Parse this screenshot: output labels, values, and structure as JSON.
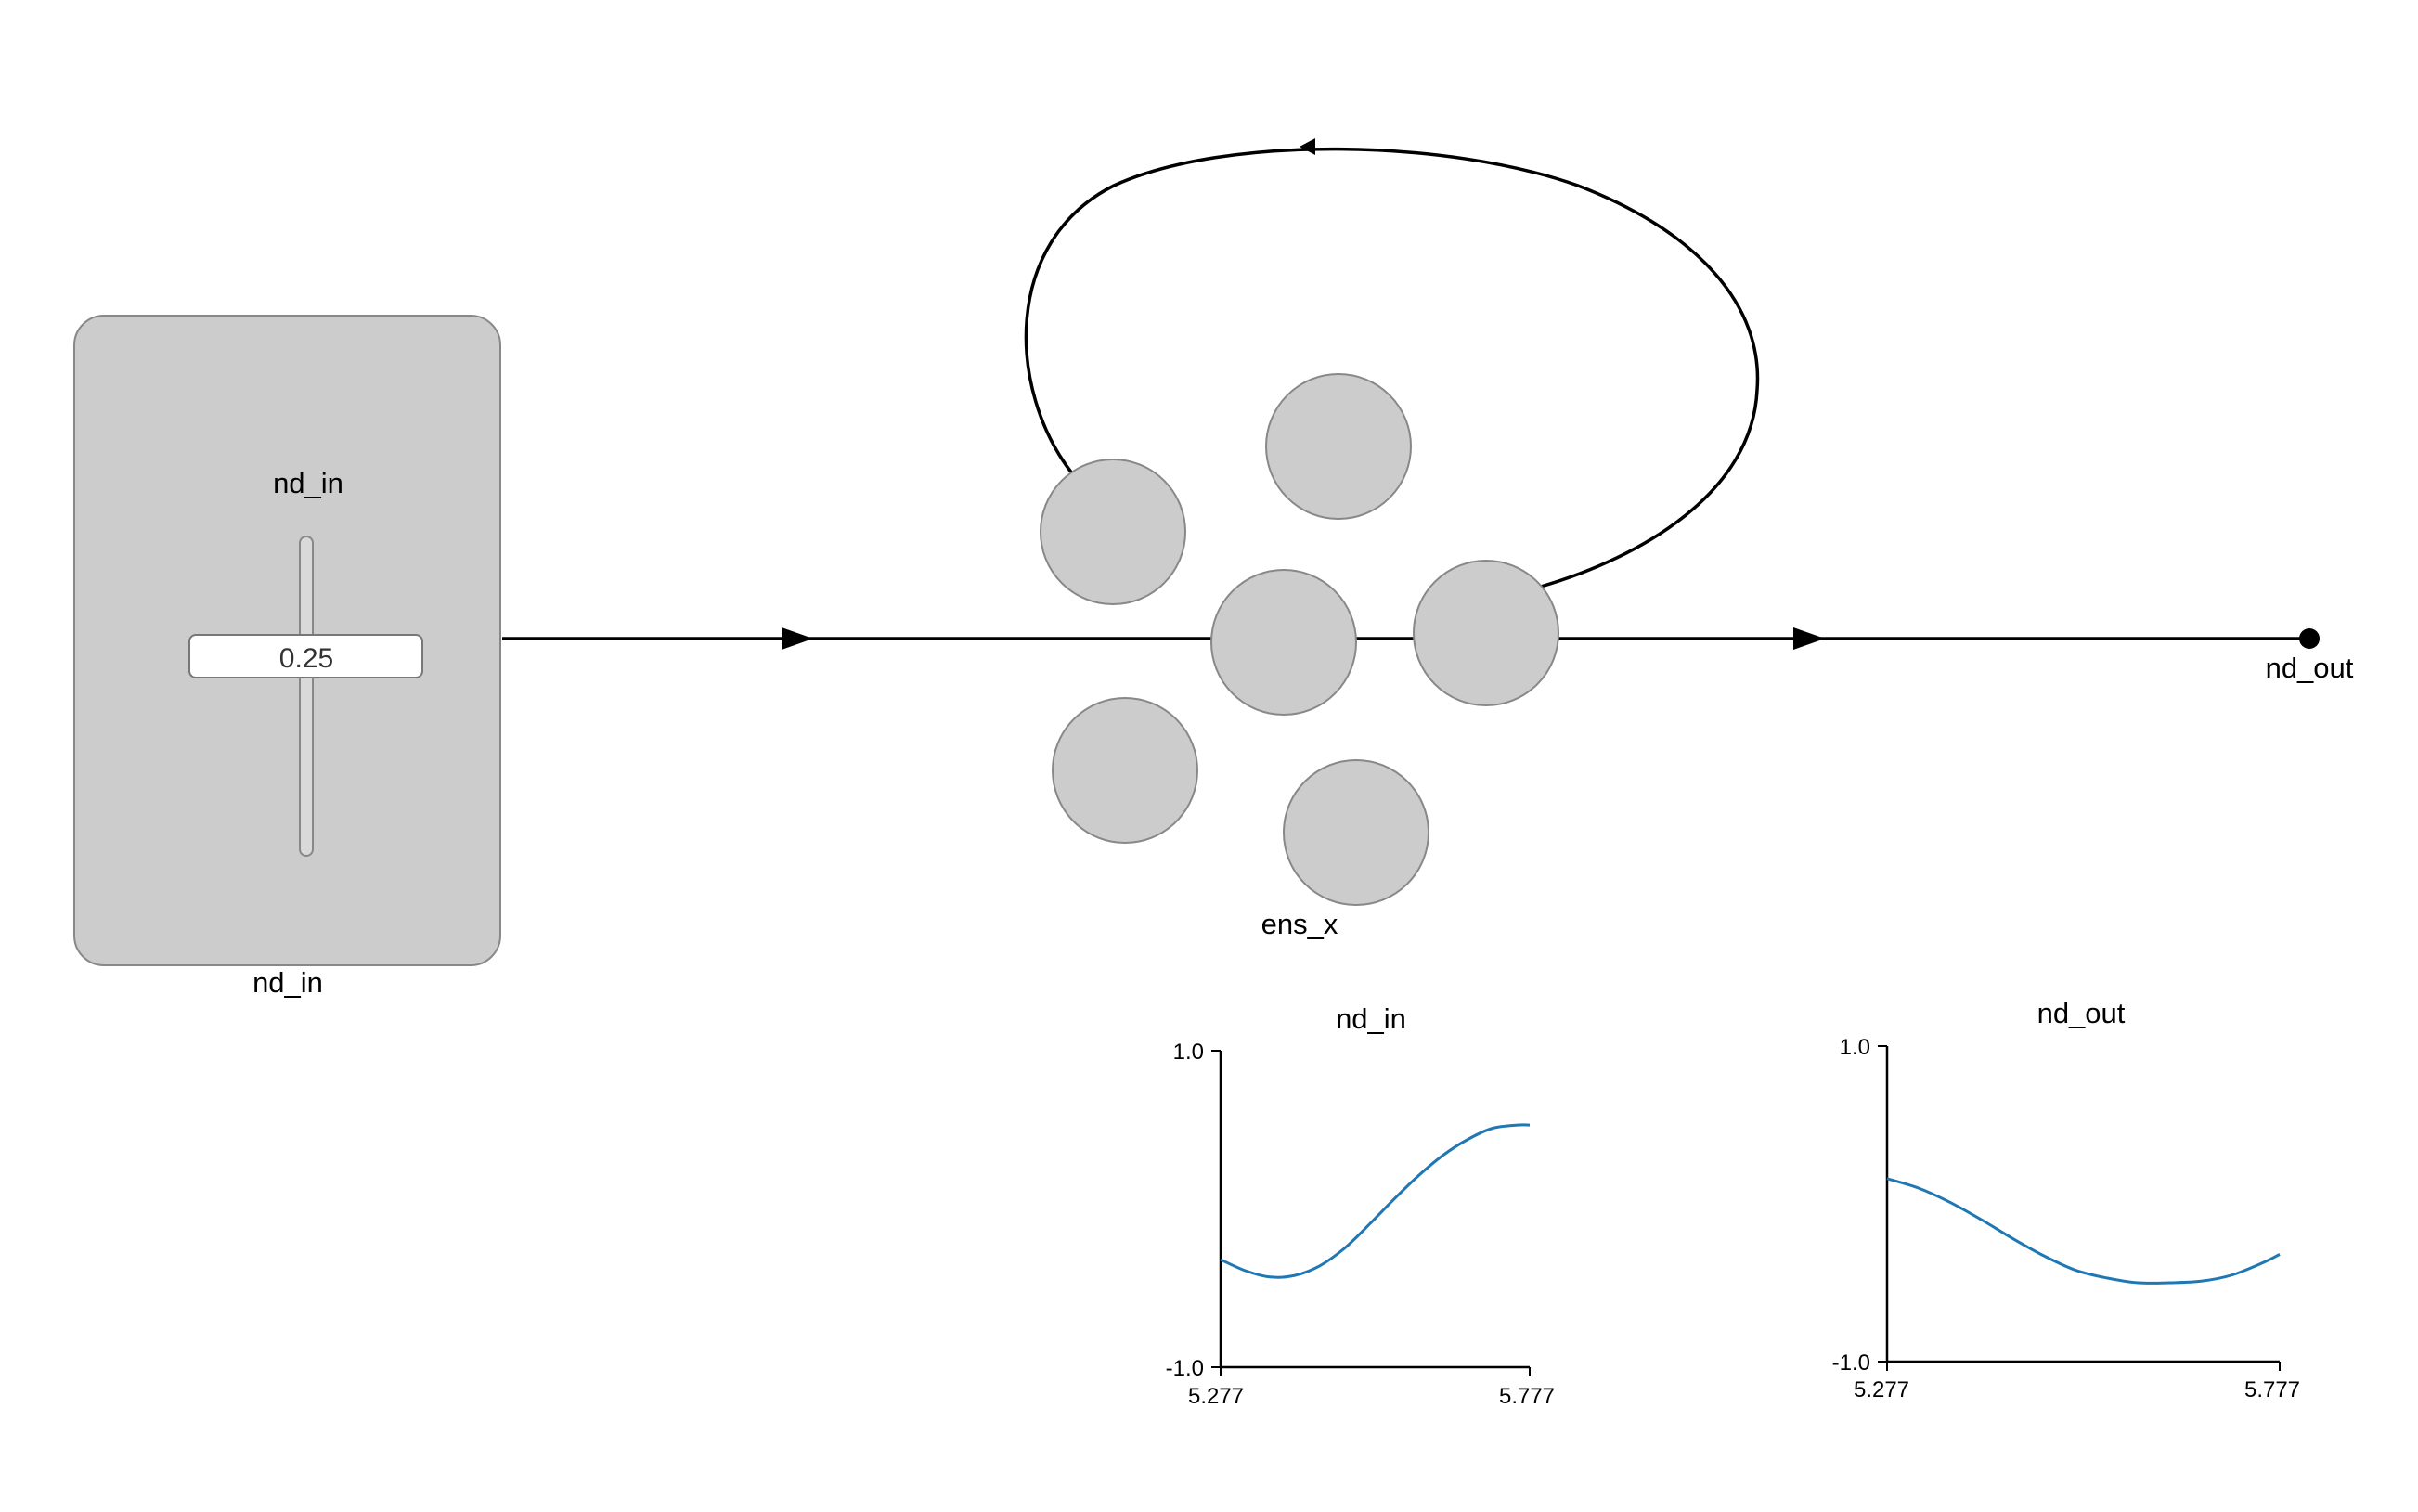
{
  "nodes": {
    "nd_in": {
      "label": "nd_in",
      "slider_label": "nd_in",
      "slider_value": "0.25",
      "fill": "#cccccc"
    },
    "ens_x": {
      "label": "ens_x",
      "neuron_count": 6,
      "fill": "#cccccc"
    },
    "nd_out": {
      "label": "nd_out",
      "fill": "#000000"
    }
  },
  "plots": {
    "nd_in": {
      "title": "nd_in",
      "y_max_label": "1.0",
      "y_min_label": "-1.0",
      "x_min_label": "5.277",
      "x_max_label": "5.777",
      "line_color": "#1f77b4"
    },
    "nd_out": {
      "title": "nd_out",
      "y_max_label": "1.0",
      "y_min_label": "-1.0",
      "x_min_label": "5.277",
      "x_max_label": "5.777",
      "line_color": "#1f77b4"
    }
  },
  "chart_data": [
    {
      "type": "line",
      "title": "nd_in",
      "xlim": [
        5.277,
        5.777
      ],
      "ylim": [
        -1.0,
        1.0
      ],
      "x": [
        5.277,
        5.317,
        5.357,
        5.397,
        5.437,
        5.477,
        5.517,
        5.557,
        5.597,
        5.637,
        5.677,
        5.717,
        5.757,
        5.777
      ],
      "values": [
        -0.32,
        -0.39,
        -0.43,
        -0.42,
        -0.36,
        -0.25,
        -0.1,
        0.06,
        0.21,
        0.34,
        0.44,
        0.51,
        0.53,
        0.53
      ]
    },
    {
      "type": "line",
      "title": "nd_out",
      "xlim": [
        5.277,
        5.777
      ],
      "ylim": [
        -1.0,
        1.0
      ],
      "x": [
        5.277,
        5.317,
        5.357,
        5.397,
        5.437,
        5.477,
        5.517,
        5.557,
        5.597,
        5.637,
        5.677,
        5.717,
        5.757,
        5.777
      ],
      "values": [
        0.16,
        0.1,
        0.01,
        -0.1,
        -0.22,
        -0.33,
        -0.42,
        -0.47,
        -0.5,
        -0.5,
        -0.49,
        -0.45,
        -0.37,
        -0.32
      ]
    }
  ]
}
